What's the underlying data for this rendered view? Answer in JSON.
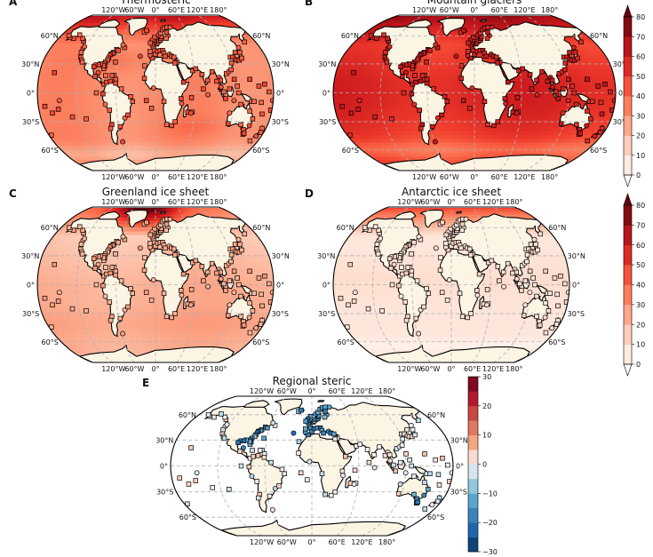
{
  "chart_data": {
    "type": "map",
    "projection": "robinson",
    "lon_ticks": [
      "120°W",
      "60°W",
      "0°",
      "60°E",
      "120°E",
      "180°"
    ],
    "lat_ticks": [
      "60°N",
      "30°N",
      "0°",
      "30°S",
      "60°S"
    ],
    "panels": [
      {
        "letter": "A",
        "title": "Thermosteric",
        "scale": "sequential",
        "field": "thermo",
        "station_shade": 0.55
      },
      {
        "letter": "B",
        "title": "Mountain glaciers",
        "scale": "sequential",
        "field": "glacier",
        "station_shade": 0.72
      },
      {
        "letter": "C",
        "title": "Greenland ice sheet",
        "scale": "sequential",
        "field": "greenland",
        "station_shade": 0.3
      },
      {
        "letter": "D",
        "title": "Antarctic ice sheet",
        "scale": "sequential",
        "field": "antarctic",
        "station_shade": 0.12
      },
      {
        "letter": "E",
        "title": "Regional steric",
        "scale": "diverging",
        "field": "steric",
        "station_shade": 0.0
      }
    ],
    "colorbars": [
      {
        "name": "sequential",
        "min": 0,
        "max": 80,
        "ticks": [
          0,
          10,
          20,
          30,
          40,
          50,
          60,
          70,
          80
        ],
        "extend": "both"
      },
      {
        "name": "diverging",
        "min": -30,
        "max": 30,
        "ticks": [
          -30,
          -20,
          -10,
          0,
          10,
          20,
          30
        ],
        "extend": "neither"
      }
    ]
  },
  "colors": {
    "land": "#fdf5e4",
    "coast": "#000000",
    "grid": "#b0b0b0",
    "seq_low": "#ffffff",
    "seq_high": "#67000d",
    "div_low": "#053061",
    "div_high": "#67001f"
  }
}
